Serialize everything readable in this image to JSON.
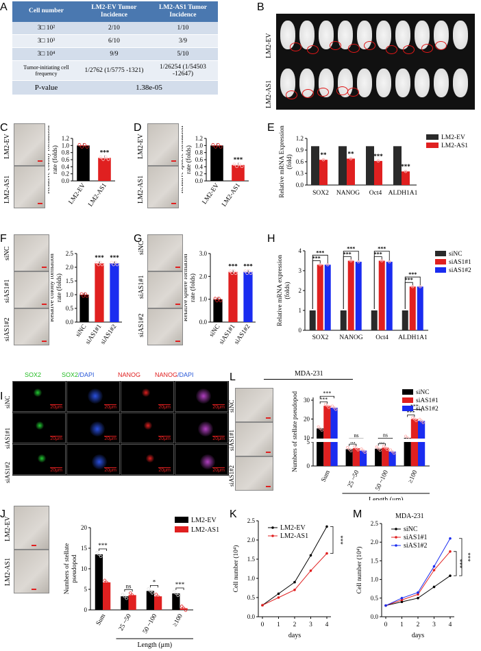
{
  "panels": {
    "A": {
      "label": "A",
      "headers": [
        "Cell number",
        "LM2-EV Tumor Incidence",
        "LM2-AS1 Tumor Incidence"
      ],
      "rows": [
        [
          "3□ 10²",
          "2/10",
          "1/10"
        ],
        [
          "3□ 10³",
          "6/10",
          "3/9"
        ],
        [
          "3□ 10⁴",
          "9/9",
          "5/10"
        ],
        [
          "Tumor-initiating cell frequency",
          "1/2762 (1/5775 -1321)",
          "1/26254 (1/54503 -12647)"
        ]
      ],
      "pvalue_label": "P-value",
      "pvalue": "1.38e-05"
    },
    "B": {
      "label": "B",
      "rows": [
        "LM2-EV",
        "LM2-AS1"
      ]
    },
    "C": {
      "label": "C",
      "images": [
        "LM2-EV",
        "LM2-AS1"
      ]
    },
    "D": {
      "label": "D",
      "images": [
        "LM2-EV",
        "LM2-AS1"
      ]
    },
    "E": {
      "label": "E"
    },
    "F": {
      "label": "F",
      "images": [
        "siNC",
        "siAS1#1",
        "siAS1#2"
      ]
    },
    "G": {
      "label": "G",
      "images": [
        "siNC",
        "siAS1#1",
        "siAS1#2"
      ]
    },
    "H": {
      "label": "H"
    },
    "I": {
      "label": "I",
      "cols": [
        "SOX2",
        "SOX2/DAPI",
        "NANOG",
        "NANOG/DAPI"
      ],
      "rows": [
        "siNC",
        "siAS1#1",
        "siAS1#2"
      ],
      "scale": "20μm"
    },
    "J": {
      "label": "J",
      "images": [
        "LM2-EV",
        "LM2-AS1"
      ]
    },
    "K": {
      "label": "K"
    },
    "L": {
      "label": "L",
      "title": "MDA-231",
      "images": [
        "siNC",
        "siAS1#1",
        "siAS1#2"
      ]
    },
    "M": {
      "label": "M"
    }
  },
  "chart_data": [
    {
      "id": "C",
      "type": "bar",
      "categories": [
        "LM2-EV",
        "LM2-AS1"
      ],
      "values": [
        1.0,
        0.65
      ],
      "ylabel": "Relative colony formation rate (folds)",
      "ylim": [
        0,
        1.2
      ],
      "yticks": [
        0,
        0.2,
        0.4,
        0.6,
        0.8,
        1.0,
        1.2
      ],
      "annotations": [
        "",
        "***"
      ],
      "colors": [
        "#000000",
        "#e02020"
      ]
    },
    {
      "id": "D",
      "type": "bar",
      "categories": [
        "LM2-EV",
        "LM2-AS1"
      ],
      "values": [
        1.0,
        0.45
      ],
      "ylabel": "Relative sphere formation rate (folds)",
      "ylim": [
        0,
        1.2
      ],
      "yticks": [
        0,
        0.2,
        0.4,
        0.6,
        0.8,
        1.0,
        1.2
      ],
      "annotations": [
        "",
        "***"
      ],
      "colors": [
        "#000000",
        "#e02020"
      ]
    },
    {
      "id": "E",
      "type": "bar",
      "categories": [
        "SOX2",
        "NANOG",
        "Oct4",
        "ALDH1A1"
      ],
      "series": [
        {
          "name": "LM2-EV",
          "values": [
            1,
            1,
            1,
            1
          ],
          "color": "#2a2a2a"
        },
        {
          "name": "LM2-AS1",
          "values": [
            0.65,
            0.68,
            0.62,
            0.35
          ],
          "color": "#e02020"
        }
      ],
      "ylabel": "Relative mRNA Expression (fold)",
      "ylim": [
        0,
        1.2
      ],
      "yticks": [
        0,
        0.3,
        0.6,
        0.9,
        1.2
      ],
      "annotations": [
        "**",
        "**",
        "***",
        "***"
      ]
    },
    {
      "id": "F",
      "type": "bar",
      "categories": [
        "siNC",
        "siAS1#1",
        "siAS1#2"
      ],
      "values": [
        1.0,
        2.15,
        2.15
      ],
      "ylabel": "Relative colony formation rate (folds)",
      "ylim": [
        0,
        2.5
      ],
      "yticks": [
        0,
        0.5,
        1.0,
        1.5,
        2.0,
        2.5
      ],
      "annotations": [
        "",
        "***",
        "***"
      ],
      "colors": [
        "#000000",
        "#e02020",
        "#1a2cf0"
      ]
    },
    {
      "id": "G",
      "type": "bar",
      "categories": [
        "siNC",
        "siAS1#1",
        "siAS1#2"
      ],
      "values": [
        1.0,
        2.2,
        2.2
      ],
      "ylabel": "Relative sphere formation rate (folds)",
      "ylim": [
        0,
        3
      ],
      "yticks": [
        0,
        1,
        2,
        3
      ],
      "annotations": [
        "",
        "***",
        "***"
      ],
      "colors": [
        "#000000",
        "#e02020",
        "#1a2cf0"
      ]
    },
    {
      "id": "H",
      "type": "bar",
      "categories": [
        "SOX2",
        "NANOG",
        "Oct4",
        "ALDH1A1"
      ],
      "series": [
        {
          "name": "siNC",
          "values": [
            1,
            1,
            1,
            1
          ],
          "color": "#2a2a2a"
        },
        {
          "name": "siAS1#1",
          "values": [
            3.3,
            3.5,
            3.5,
            2.2
          ],
          "color": "#e02020"
        },
        {
          "name": "siAS1#2",
          "values": [
            3.3,
            3.45,
            3.45,
            2.2
          ],
          "color": "#1a2cf0"
        }
      ],
      "ylabel": "Relative mRNA expression (folds)",
      "ylim": [
        0,
        4
      ],
      "yticks": [
        0,
        1,
        2,
        3,
        4
      ]
    },
    {
      "id": "J",
      "type": "bar",
      "categories": [
        "Sum",
        "25 ~50",
        "50 ~100",
        "≥100"
      ],
      "series": [
        {
          "name": "LM2-EV",
          "values": [
            13.5,
            3.3,
            4.6,
            4.0
          ],
          "color": "#000000"
        },
        {
          "name": "LM2-AS1",
          "values": [
            6.7,
            3.6,
            3.3,
            0.4
          ],
          "color": "#e02020"
        }
      ],
      "ylabel": "Numbers of stellate pseudopod",
      "xlabel": "Length (μm)",
      "ylim": [
        0,
        20
      ],
      "yticks": [
        0,
        5,
        10,
        15,
        20
      ],
      "annotations": [
        "***",
        "ns",
        "*",
        "***"
      ]
    },
    {
      "id": "K",
      "type": "line",
      "x": [
        0,
        1,
        2,
        3,
        4
      ],
      "series": [
        {
          "name": "LM2-EV",
          "values": [
            0.3,
            0.6,
            0.9,
            1.6,
            2.35
          ],
          "color": "#000000"
        },
        {
          "name": "LM2-AS1",
          "values": [
            0.3,
            0.5,
            0.7,
            1.2,
            1.65
          ],
          "color": "#e02020"
        }
      ],
      "ylabel": "Cell number (10⁴)",
      "xlabel": "days",
      "ylim": [
        0,
        2.5
      ],
      "yticks": [
        0,
        0.5,
        1.0,
        1.5,
        2.0,
        2.5
      ],
      "annotations": [
        "***"
      ]
    },
    {
      "id": "L",
      "type": "bar",
      "title": "MDA-231",
      "categories": [
        "Sum",
        "25 ~50",
        "50 ~100",
        "≥100"
      ],
      "series": [
        {
          "name": "siNC",
          "values": [
            15,
            3.5,
            3.6,
            10
          ],
          "color": "#000000"
        },
        {
          "name": "siAS1#1",
          "values": [
            27,
            3.7,
            3.8,
            20
          ],
          "color": "#e02020"
        },
        {
          "name": "siAS1#2",
          "values": [
            26,
            3.2,
            3.0,
            19
          ],
          "color": "#1a2cf0"
        }
      ],
      "ylabel": "Numbers of stellate pseudopod",
      "xlabel": "Length (μm)",
      "yticks": [
        0,
        5,
        10,
        20,
        30
      ],
      "annotations": [
        "***",
        "ns",
        "ns",
        "***"
      ]
    },
    {
      "id": "M",
      "type": "line",
      "title": "MDA-231",
      "x": [
        0,
        1,
        2,
        3,
        4
      ],
      "series": [
        {
          "name": "siNC",
          "values": [
            0.3,
            0.4,
            0.5,
            0.8,
            1.1
          ],
          "color": "#000000"
        },
        {
          "name": "siAS1#1",
          "values": [
            0.3,
            0.45,
            0.6,
            1.25,
            1.75
          ],
          "color": "#e02020"
        },
        {
          "name": "siAS1#2",
          "values": [
            0.3,
            0.5,
            0.65,
            1.35,
            2.1
          ],
          "color": "#1a2cf0"
        }
      ],
      "ylabel": "Cell number (10⁴)",
      "xlabel": "days",
      "ylim": [
        0,
        2.5
      ],
      "yticks": [
        0,
        0.5,
        1.0,
        1.5,
        2.0,
        2.5
      ],
      "annotations": [
        "***",
        "***"
      ]
    }
  ]
}
